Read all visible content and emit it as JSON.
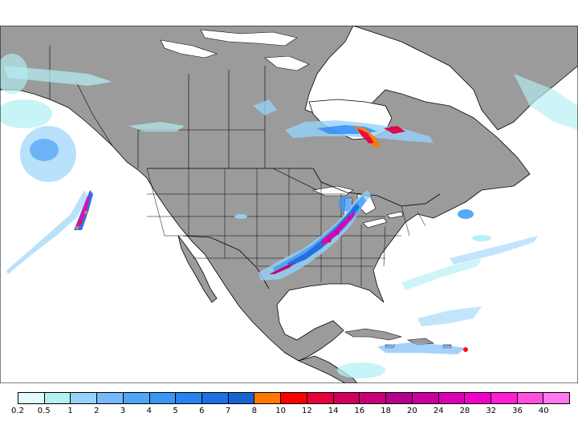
{
  "map": {
    "ocean_color": "#ffffff",
    "land_color": "#9b9b9b",
    "coast_color": "#000000",
    "features": [
      "north-america",
      "greenland",
      "hudson-bay",
      "great-lakes",
      "gulf-of-mexico",
      "caribbean-islands",
      "us-state-borders",
      "canada-province-borders"
    ]
  },
  "legend": {
    "ticks": [
      "0.2",
      "0.5",
      "1",
      "2",
      "3",
      "4",
      "5",
      "6",
      "7",
      "8",
      "10",
      "12",
      "14",
      "16",
      "18",
      "20",
      "24",
      "28",
      "32",
      "36",
      "40"
    ],
    "colors": [
      "#e4fcfc",
      "#b4f0f4",
      "#96d2fa",
      "#78b9fa",
      "#50a5f5",
      "#3c96f5",
      "#2882f0",
      "#1e6ee6",
      "#1464d2",
      "#ff7800",
      "#ff0000",
      "#e6003c",
      "#d2005a",
      "#c80078",
      "#b4008c",
      "#c800a0",
      "#dc00b4",
      "#f000c8",
      "#ff1ed2",
      "#ff50dc",
      "#ff78f0"
    ]
  }
}
